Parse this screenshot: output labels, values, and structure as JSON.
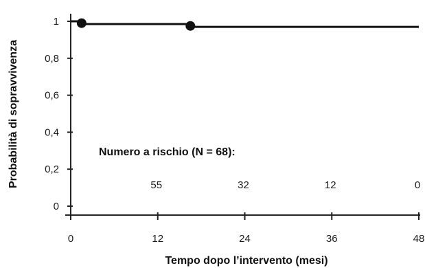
{
  "chart_data": {
    "type": "line",
    "xlabel": "Tempo dopo l’intervento (mesi)",
    "ylabel": "Probabilità di sopravvivenza",
    "xlim": [
      0,
      48
    ],
    "ylim": [
      0,
      1
    ],
    "x_ticks": [
      0,
      12,
      24,
      36,
      48
    ],
    "y_ticks": [
      0,
      0.2,
      0.4,
      0.6,
      0.8,
      1
    ],
    "x_tick_labels": [
      "0",
      "12",
      "24",
      "36",
      "48"
    ],
    "y_tick_labels": [
      "0",
      "0,2",
      "0,4",
      "0,6",
      "0,8",
      "1"
    ],
    "grid": false,
    "series": [
      {
        "x": [
          0,
          1.5,
          1.5,
          16.5,
          16.5,
          48
        ],
        "y": [
          1,
          1,
          0.985,
          0.985,
          0.97,
          0.97
        ]
      }
    ],
    "censor_marks": [
      {
        "x": 1.5,
        "y": 0.99
      },
      {
        "x": 16.5,
        "y": 0.975
      }
    ],
    "risk_table": {
      "title": "Numero a rischio (N = 68):",
      "times": [
        12,
        24,
        36,
        48
      ],
      "values": [
        "55",
        "32",
        "12",
        "0"
      ]
    },
    "colors": {
      "line": "#111111",
      "axis": "#222222",
      "text": "#1a1a1a"
    }
  }
}
